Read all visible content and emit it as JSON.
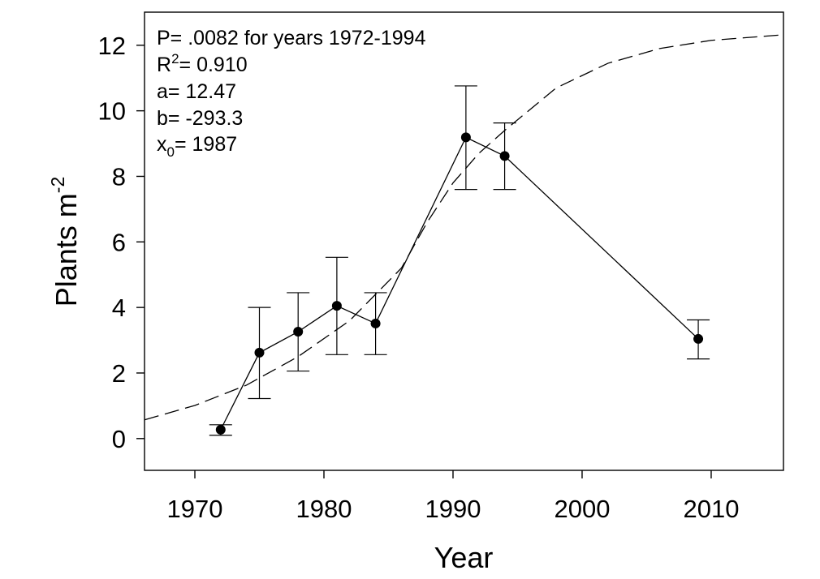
{
  "chart_data": {
    "type": "scatter",
    "xlabel": "Year",
    "ylabel": "Plants m",
    "ylabel_superscript": "-2",
    "xlim": [
      1966.1,
      2015.6
    ],
    "ylim": [
      -0.97,
      13.01
    ],
    "x_ticks": [
      1970,
      1980,
      1990,
      2000,
      2010
    ],
    "y_ticks": [
      0,
      2,
      4,
      6,
      8,
      10,
      12
    ],
    "grid": false,
    "series": [
      {
        "x": [
          1972,
          1975,
          1978,
          1981,
          1984,
          1991,
          1994,
          2009
        ],
        "y": [
          0.27,
          2.62,
          3.26,
          4.05,
          3.51,
          9.19,
          8.62,
          3.04
        ],
        "error_low": [
          0.1,
          1.22,
          2.06,
          2.56,
          2.56,
          7.6,
          7.6,
          2.43
        ],
        "error_high": [
          0.42,
          4.0,
          4.45,
          5.53,
          4.45,
          10.76,
          9.63,
          3.62
        ]
      }
    ],
    "fit_curve": {
      "x": [
        1966.1,
        1970,
        1974,
        1978,
        1982,
        1986,
        1988,
        1990,
        1992,
        1994,
        1998,
        2002,
        2006,
        2010,
        2015.6
      ],
      "y": [
        0.57,
        1.01,
        1.63,
        2.5,
        3.6,
        5.2,
        6.6,
        7.8,
        8.7,
        9.4,
        10.7,
        11.45,
        11.9,
        12.15,
        12.32
      ]
    },
    "annotation": {
      "line1": "P= .0082 for years 1972-1994",
      "r2_symbol": "R",
      "r2_superscript": "2",
      "r2_value": "= 0.910",
      "a_line": "a= 12.47",
      "b_line": "b= -293.3",
      "x0_symbol": "x",
      "x0_subscript": "0",
      "x0_value": "= 1987"
    }
  }
}
